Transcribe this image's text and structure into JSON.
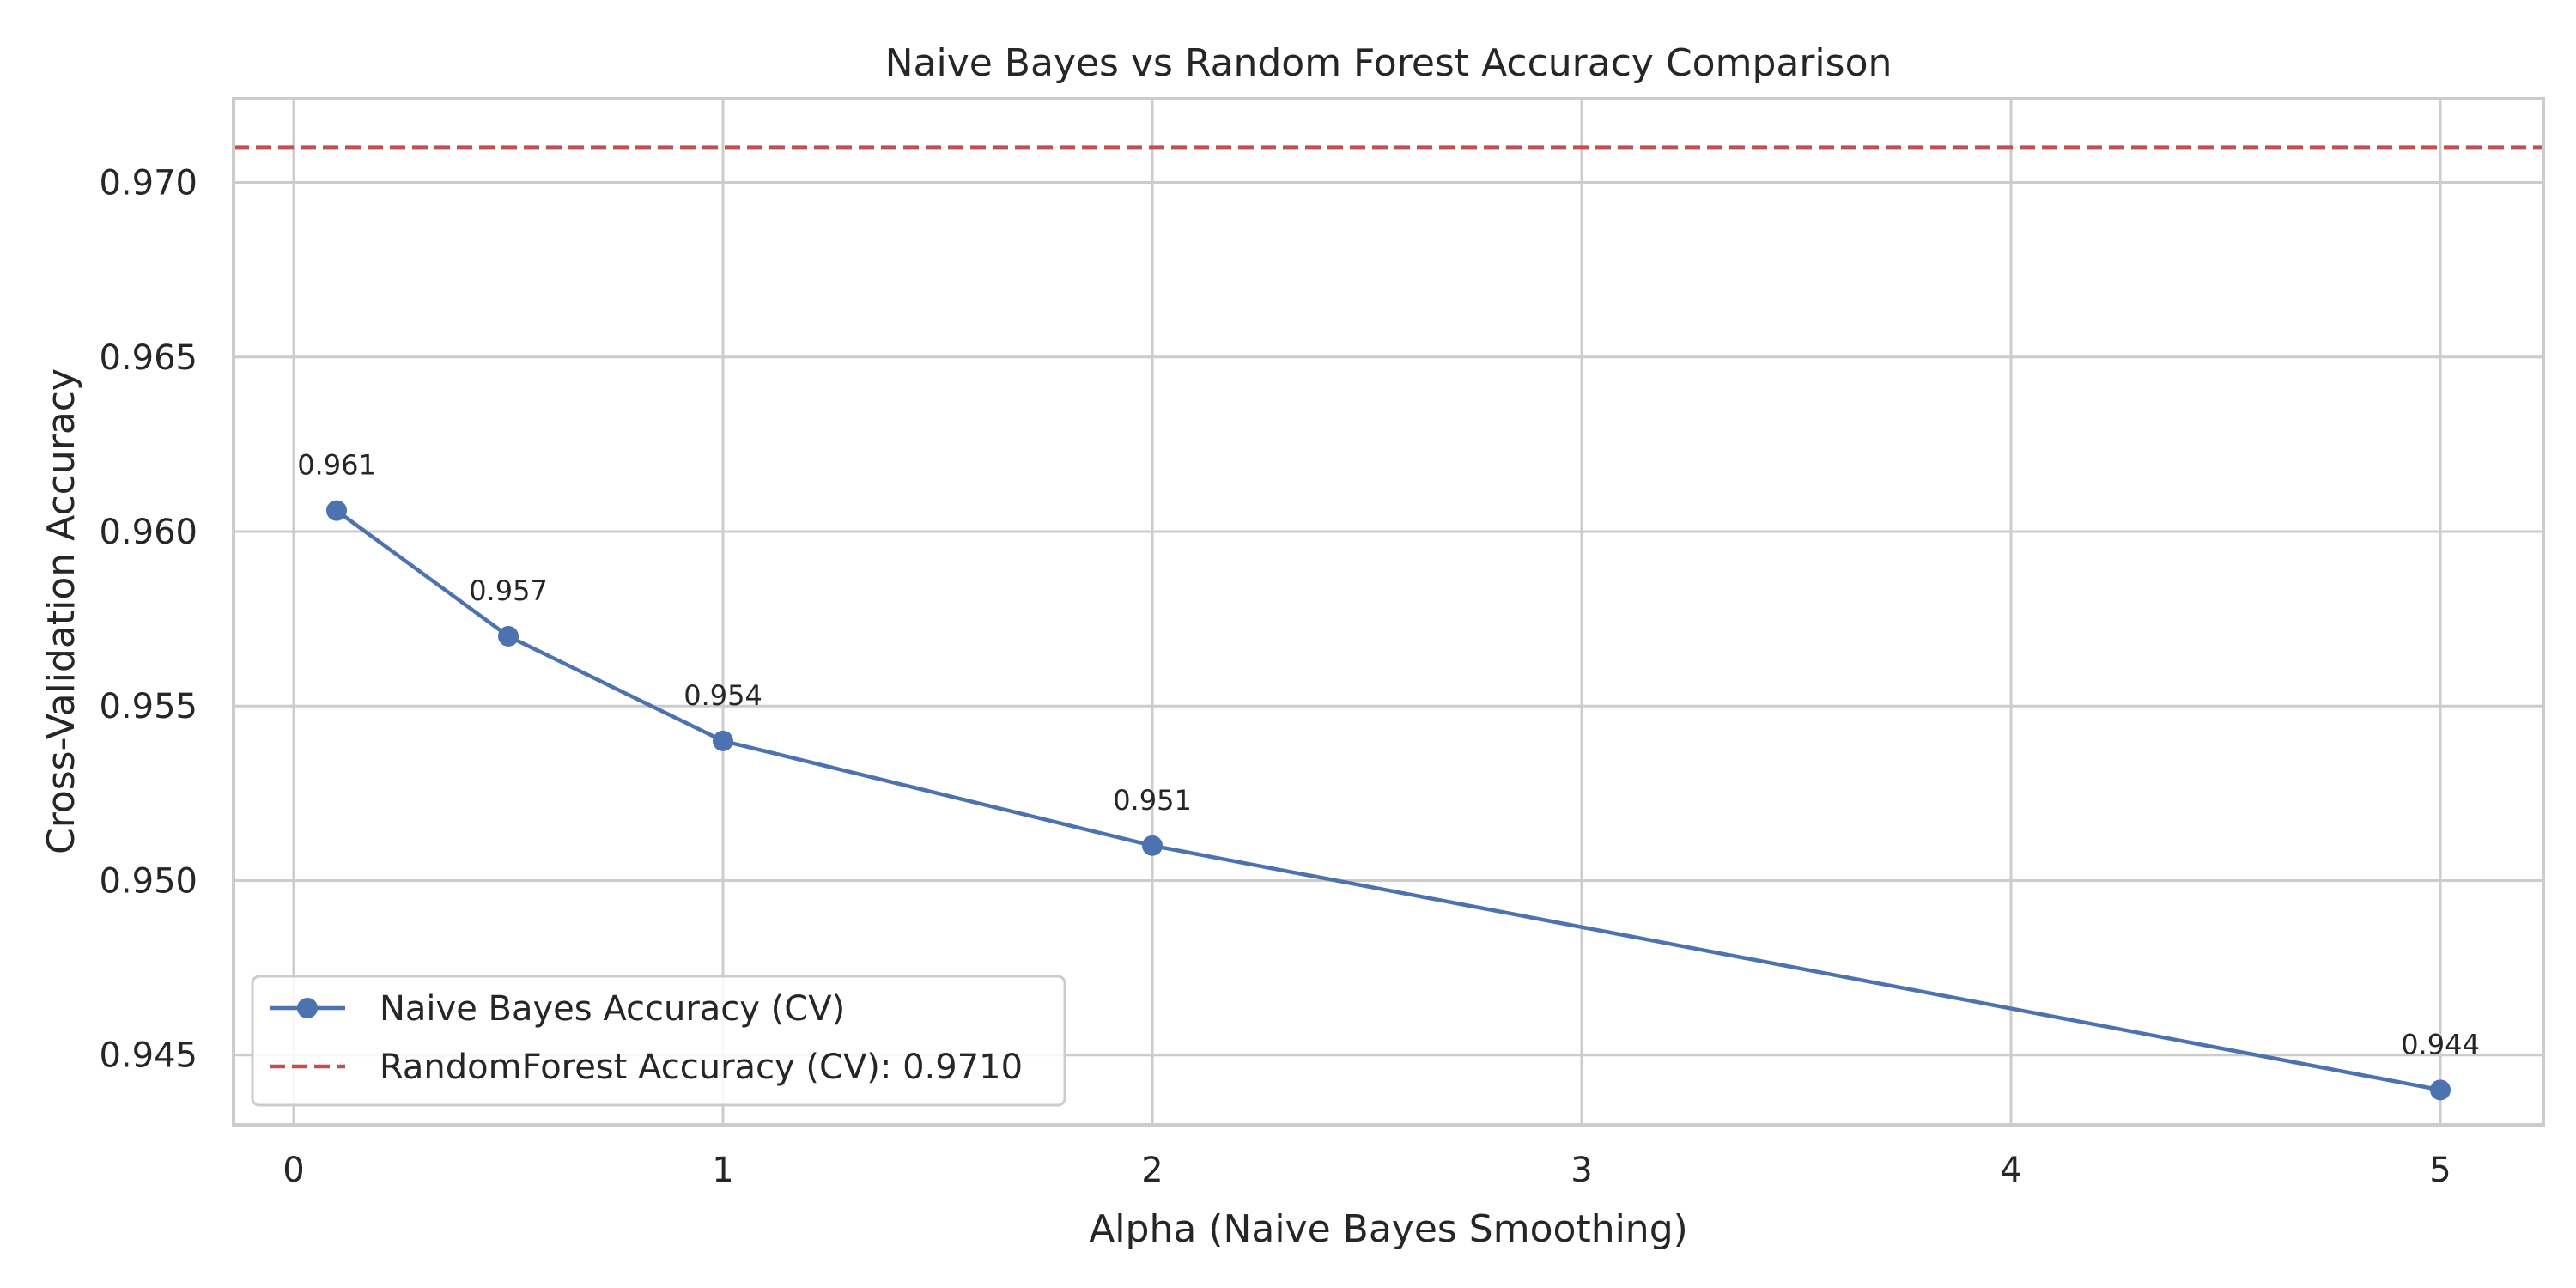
{
  "chart_data": {
    "type": "line",
    "title": "Naive Bayes vs Random Forest Accuracy Comparison",
    "xlabel": "Alpha (Naive Bayes Smoothing)",
    "ylabel": "Cross-Validation Accuracy",
    "xlim": [
      -0.14,
      5.24
    ],
    "ylim": [
      0.943,
      0.9724
    ],
    "xticks": [
      {
        "value": 0,
        "label": "0"
      },
      {
        "value": 1,
        "label": "1"
      },
      {
        "value": 2,
        "label": "2"
      },
      {
        "value": 3,
        "label": "3"
      },
      {
        "value": 4,
        "label": "4"
      },
      {
        "value": 5,
        "label": "5"
      }
    ],
    "yticks": [
      {
        "value": 0.945,
        "label": "0.945"
      },
      {
        "value": 0.95,
        "label": "0.950"
      },
      {
        "value": 0.955,
        "label": "0.955"
      },
      {
        "value": 0.96,
        "label": "0.960"
      },
      {
        "value": 0.965,
        "label": "0.965"
      },
      {
        "value": 0.97,
        "label": "0.970"
      }
    ],
    "grid": true,
    "legend_position": "lower-left",
    "series": [
      {
        "name": "Naive Bayes Accuracy (CV)",
        "color": "#4c72b0",
        "marker": "circle",
        "points": [
          {
            "x": 0.1,
            "y": 0.9606,
            "label": "0.961"
          },
          {
            "x": 0.5,
            "y": 0.957,
            "label": "0.957"
          },
          {
            "x": 1.0,
            "y": 0.954,
            "label": "0.954"
          },
          {
            "x": 2.0,
            "y": 0.951,
            "label": "0.951"
          },
          {
            "x": 5.0,
            "y": 0.944,
            "label": "0.944"
          }
        ]
      }
    ],
    "reference_lines": [
      {
        "name": "RandomForest Accuracy (CV): 0.9710",
        "y": 0.971,
        "color": "#c44e52",
        "style": "dashed"
      }
    ]
  }
}
